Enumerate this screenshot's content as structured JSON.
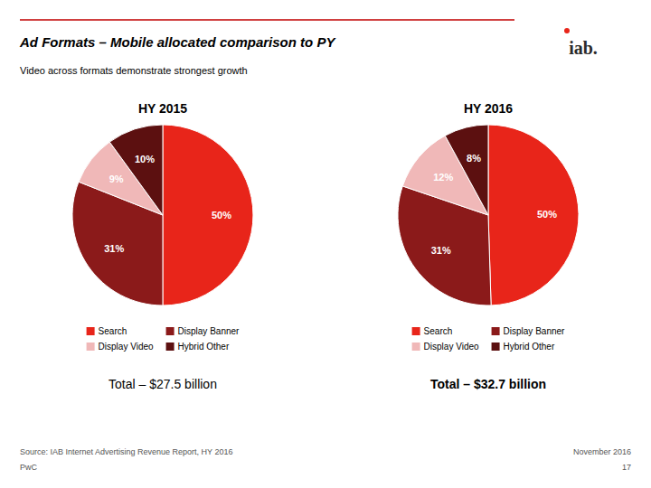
{
  "title": "Ad Formats – Mobile allocated comparison to PY",
  "subtitle": "Video across formats demonstrate strongest growth",
  "annotations": [
    "iab.",
    "Source: IAB Internet Advertising Revenue Report, HY 2016",
    "PwC",
    "November 2016",
    "17"
  ],
  "chart_data": [
    {
      "type": "pie",
      "title": "HY 2015",
      "categories": [
        "Search",
        "Display Banner",
        "Display Video",
        "Hybrid Other"
      ],
      "values": [
        50,
        31,
        9,
        10
      ],
      "value_labels": [
        "50%",
        "31%",
        "9%",
        "10%"
      ],
      "colors": [
        "#e8251a",
        "#8b1a1a",
        "#f0b8b8",
        "#5c1010"
      ],
      "data_labels": true,
      "legend": "bottom",
      "annotations": [
        "Total – $27.5 billion"
      ]
    },
    {
      "type": "pie",
      "title": "HY 2016",
      "categories": [
        "Search",
        "Display Banner",
        "Display Video",
        "Hybrid Other"
      ],
      "values": [
        50,
        31,
        12,
        8
      ],
      "value_labels": [
        "50%",
        "31%",
        "12%",
        "8%"
      ],
      "colors": [
        "#e8251a",
        "#8b1a1a",
        "#f0b8b8",
        "#5c1010"
      ],
      "data_labels": true,
      "legend": "bottom",
      "annotations": [
        "Total – $32.7 billion"
      ]
    }
  ]
}
